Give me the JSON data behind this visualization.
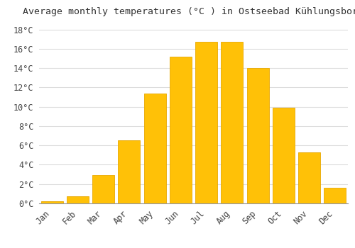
{
  "months": [
    "Jan",
    "Feb",
    "Mar",
    "Apr",
    "May",
    "Jun",
    "Jul",
    "Aug",
    "Sep",
    "Oct",
    "Nov",
    "Dec"
  ],
  "temperatures": [
    0.2,
    0.7,
    2.9,
    6.5,
    11.4,
    15.2,
    16.7,
    16.7,
    14.0,
    9.9,
    5.3,
    1.6
  ],
  "bar_color": "#FFC107",
  "bar_edge_color": "#E8A800",
  "title": "Average monthly temperatures (°C ) in Ostseebad Kühlungsborn",
  "title_fontsize": 9.5,
  "ytick_labels": [
    "0°C",
    "2°C",
    "4°C",
    "6°C",
    "8°C",
    "10°C",
    "12°C",
    "14°C",
    "16°C",
    "18°C"
  ],
  "ytick_values": [
    0,
    2,
    4,
    6,
    8,
    10,
    12,
    14,
    16,
    18
  ],
  "ylim": [
    0,
    19.0
  ],
  "background_color": "#ffffff",
  "grid_color": "#dddddd",
  "font_family": "monospace",
  "tick_fontsize": 8.5
}
